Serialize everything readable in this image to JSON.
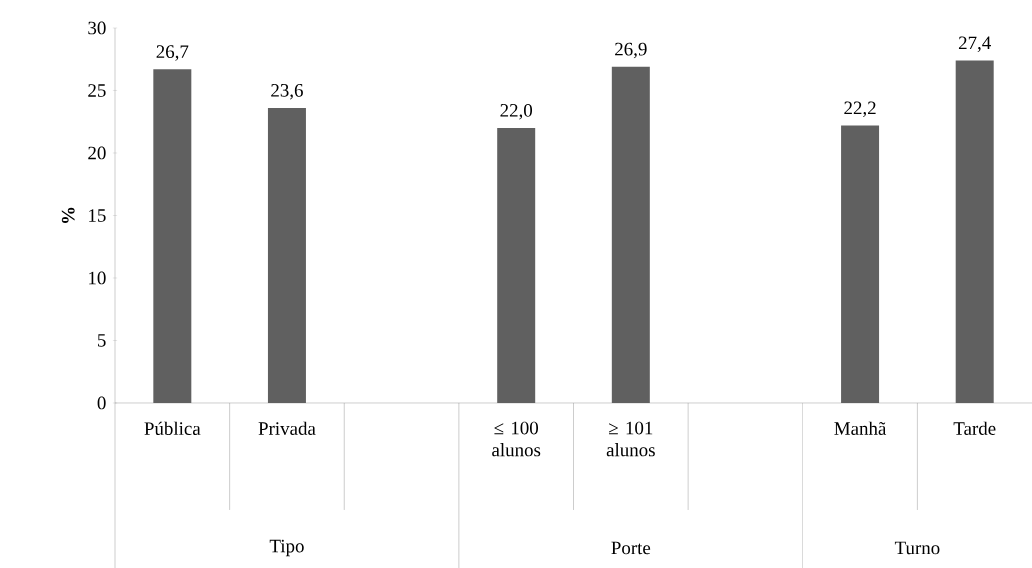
{
  "chart_data": {
    "type": "bar",
    "ylabel": "%",
    "color": "#606060",
    "categories": [
      "Pública",
      "Privada",
      null,
      "≤ 100 alunos",
      "≥ 101 alunos",
      null,
      "Manhã",
      "Tarde"
    ],
    "values": [
      26.7,
      23.6,
      null,
      22.0,
      26.9,
      null,
      22.2,
      27.4
    ],
    "value_labels": [
      "26,7",
      "23,6",
      null,
      "22,0",
      "26,9",
      null,
      "22,2",
      "27,4"
    ],
    "ylim": [
      0,
      30
    ],
    "yticks": [
      0,
      5,
      10,
      15,
      20,
      25,
      30
    ],
    "annotations": [
      "Tipo",
      "Porte",
      "Turno"
    ],
    "grid": false
  }
}
